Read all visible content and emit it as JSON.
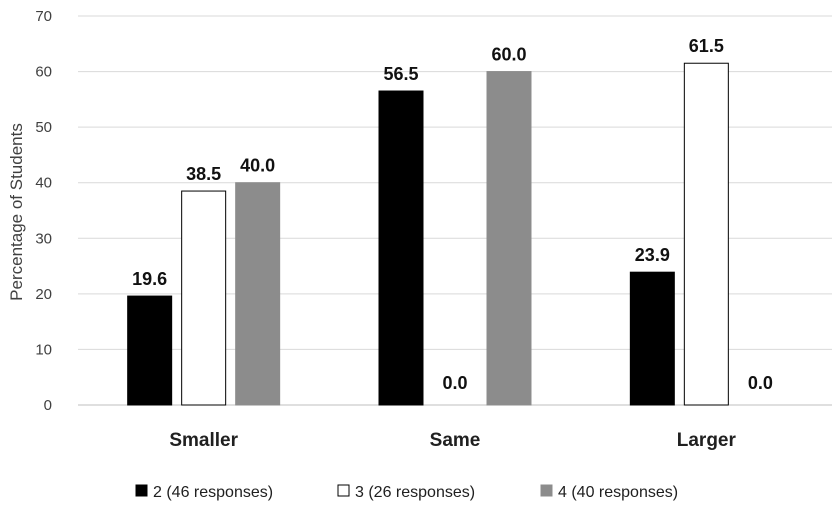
{
  "chart_data": {
    "type": "bar",
    "title": "",
    "xlabel": "",
    "ylabel": "Percentage of Students",
    "ylim": [
      0,
      70
    ],
    "yticks": [
      0,
      10,
      20,
      30,
      40,
      50,
      60,
      70
    ],
    "grid": true,
    "legend_position": "bottom",
    "categories": [
      "Smaller",
      "Same",
      "Larger"
    ],
    "series": [
      {
        "name": "2 (46 responses)",
        "color": "#000000",
        "values": [
          19.6,
          56.5,
          23.9
        ],
        "labels": [
          "19.6",
          "56.5",
          "23.9"
        ]
      },
      {
        "name": "3 (26 responses)",
        "color": "#ffffff",
        "values": [
          38.5,
          0.0,
          61.5
        ],
        "labels": [
          "38.5",
          "0.0",
          "61.5"
        ]
      },
      {
        "name": "4 (40 responses)",
        "color": "#8c8c8c",
        "values": [
          40.0,
          60.0,
          0.0
        ],
        "labels": [
          "40.0",
          "60.0",
          "0.0"
        ]
      }
    ]
  }
}
